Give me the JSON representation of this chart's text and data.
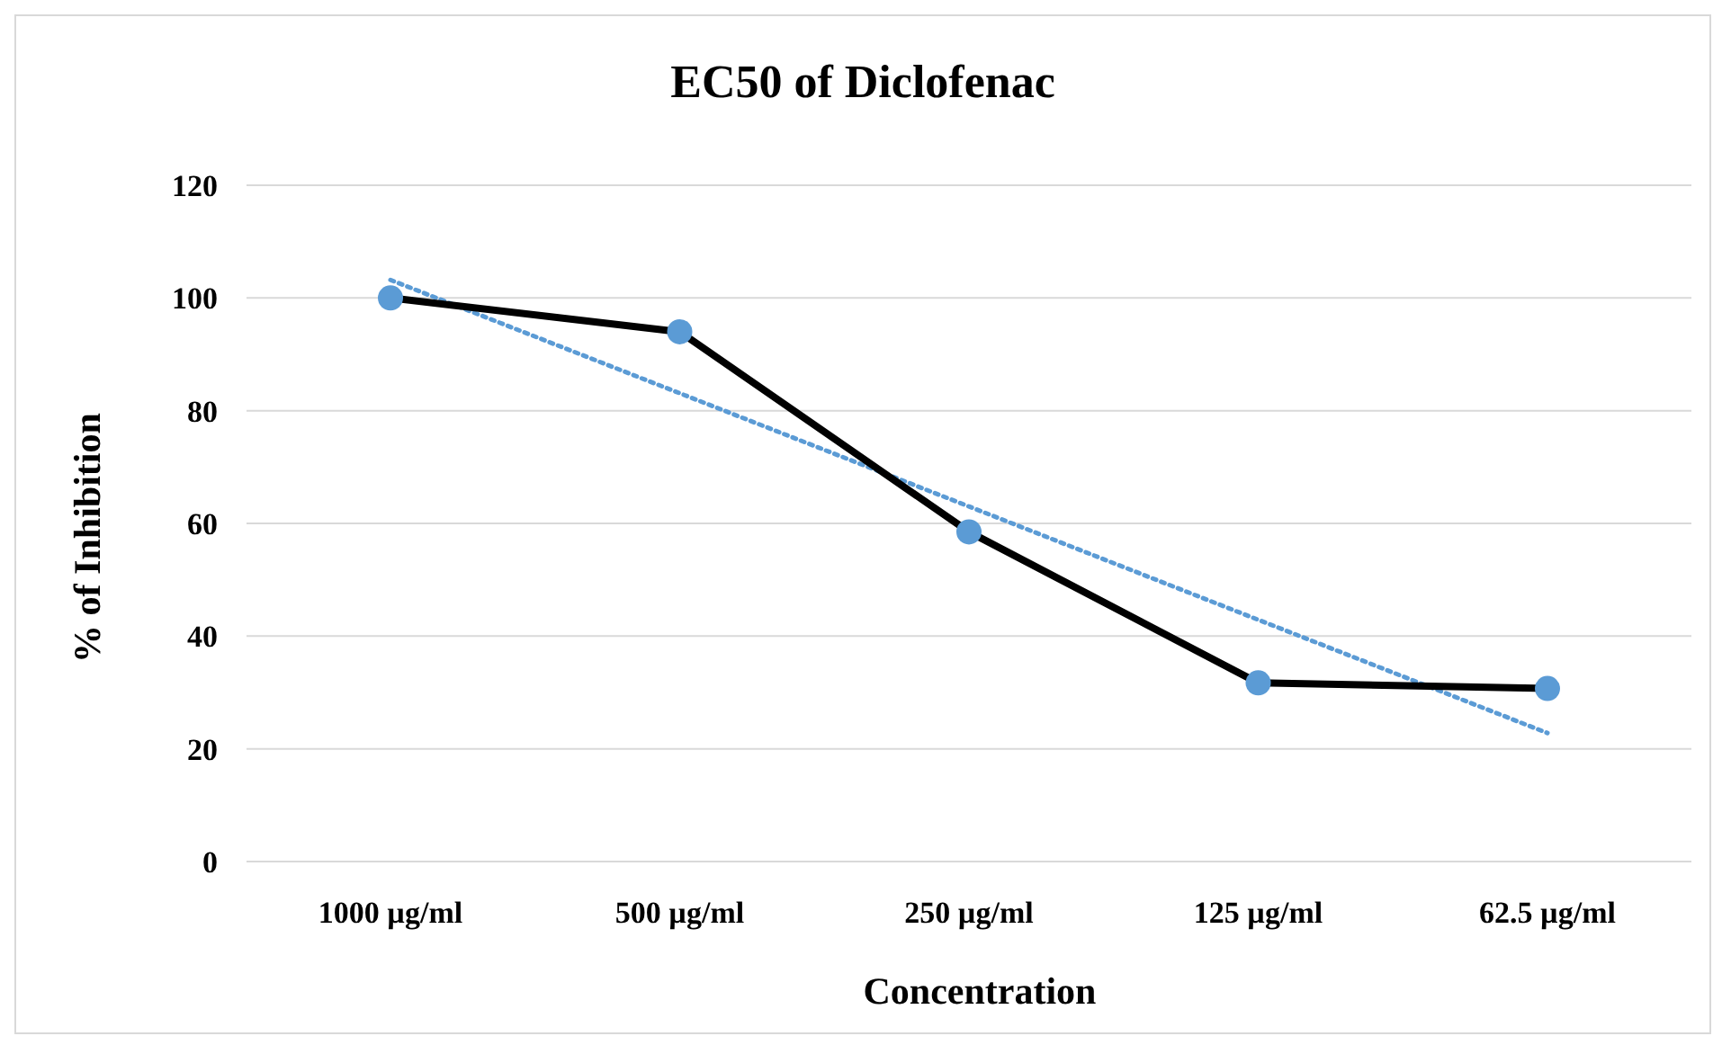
{
  "chart_data": {
    "type": "line",
    "title": "EC50 of Diclofenac",
    "xlabel": "Concentration",
    "ylabel": "% of Inhibition",
    "categories": [
      "1000 µg/ml",
      "500 µg/ml",
      "250 µg/ml",
      "125 µg/ml",
      "62.5 µg/ml"
    ],
    "series": [
      {
        "color": "#000000",
        "colors": [
          "#5b9bd5",
          "#5b9bd5",
          "#5b9bd5",
          "#5b9bd5",
          "#5b9bd5"
        ],
        "marker": "circle",
        "line_style": "solid",
        "values": [
          100,
          94,
          58.5,
          31.7,
          30.7
        ]
      },
      {
        "color": "#5b9bd5",
        "marker": "none",
        "line_style": "dotted",
        "values": [
          103.2,
          83.1,
          63.0,
          42.9,
          22.8
        ]
      }
    ],
    "ylim": [
      0,
      120
    ],
    "yticks": [
      0,
      20,
      40,
      60,
      80,
      100,
      120
    ],
    "grid": "y",
    "legend": false
  }
}
